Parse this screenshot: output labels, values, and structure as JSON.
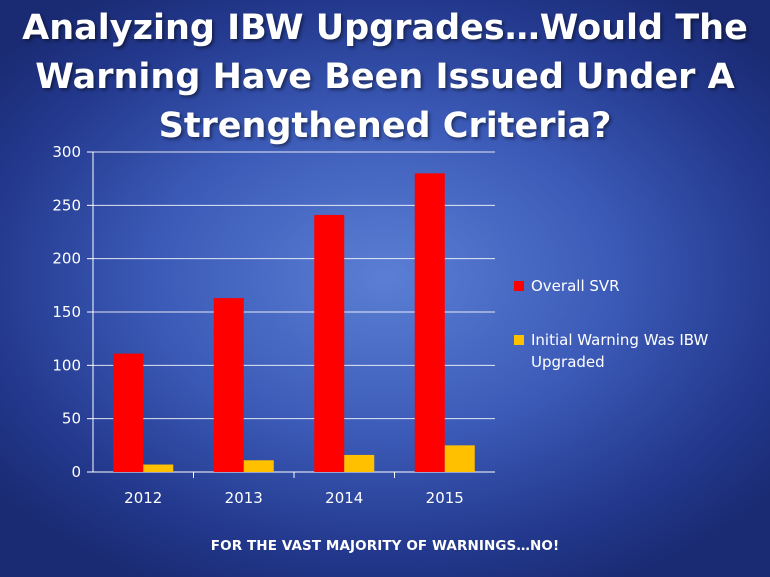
{
  "slide": {
    "title_lines": [
      "Analyzing IBW Upgrades…Would The",
      "Warning Have Been Issued Under A",
      "Strengthened Criteria?"
    ],
    "footer": "FOR THE VAST MAJORITY OF WARNINGS…NO!"
  },
  "colors": {
    "series_overall": "#ff0000",
    "series_ibw": "#ffc000",
    "text": "#ffffff",
    "grid": "#ffffff"
  },
  "chart_data": {
    "type": "bar",
    "title": "",
    "xlabel": "",
    "ylabel": "",
    "ylim": [
      0,
      300
    ],
    "yticks": [
      0,
      50,
      100,
      150,
      200,
      250,
      300
    ],
    "grid": true,
    "legend_position": "right",
    "categories": [
      "2012",
      "2013",
      "2014",
      "2015"
    ],
    "series": [
      {
        "name": "Overall SVR",
        "values": [
          111,
          163,
          241,
          280
        ]
      },
      {
        "name": "Initial Warning Was IBW Upgraded",
        "legend_lines": [
          "Initial Warning Was IBW",
          "Upgraded"
        ],
        "values": [
          7,
          11,
          16,
          25
        ]
      }
    ]
  }
}
